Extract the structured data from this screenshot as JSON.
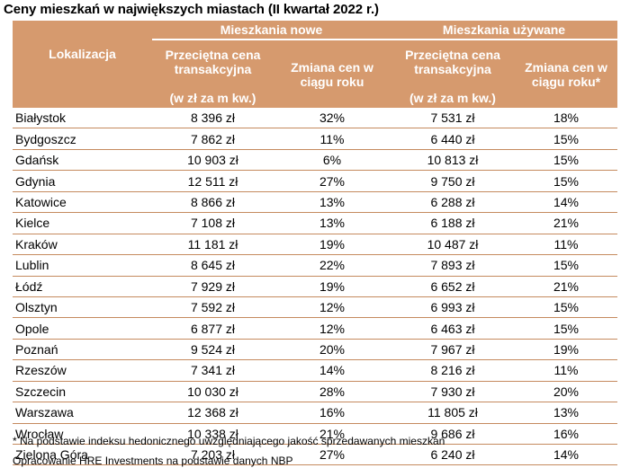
{
  "title": "Ceny mieszkań w największych miastach (II kwartał 2022 r.)",
  "header": {
    "location": "Lokalizacja",
    "group_new": "Mieszkania nowe",
    "group_used": "Mieszkania używane",
    "avg_price_line1": "Przeciętna cena",
    "avg_price_line2": "transakcyjna",
    "unit": "(w zł za m kw.)",
    "change_new_line1": "Zmiana cen w",
    "change_new_line2": "ciągu roku",
    "change_used_line1": "Zmiana cen w",
    "change_used_line2": "ciągu roku*"
  },
  "rows": [
    {
      "city": "Białystok",
      "new_price": "8 396 zł",
      "new_change": "32%",
      "used_price": "7 531 zł",
      "used_change": "18%"
    },
    {
      "city": "Bydgoszcz",
      "new_price": "7 862 zł",
      "new_change": "11%",
      "used_price": "6 440 zł",
      "used_change": "15%"
    },
    {
      "city": "Gdańsk",
      "new_price": "10 903 zł",
      "new_change": "6%",
      "used_price": "10 813 zł",
      "used_change": "15%"
    },
    {
      "city": "Gdynia",
      "new_price": "12 511 zł",
      "new_change": "27%",
      "used_price": "9 750 zł",
      "used_change": "15%"
    },
    {
      "city": "Katowice",
      "new_price": "8 866 zł",
      "new_change": "13%",
      "used_price": "6 288 zł",
      "used_change": "14%"
    },
    {
      "city": "Kielce",
      "new_price": "7 108 zł",
      "new_change": "13%",
      "used_price": "6 188 zł",
      "used_change": "21%"
    },
    {
      "city": "Kraków",
      "new_price": "11 181 zł",
      "new_change": "19%",
      "used_price": "10 487 zł",
      "used_change": "11%"
    },
    {
      "city": "Lublin",
      "new_price": "8 645 zł",
      "new_change": "22%",
      "used_price": "7 893 zł",
      "used_change": "15%"
    },
    {
      "city": "Łódź",
      "new_price": "7 929 zł",
      "new_change": "19%",
      "used_price": "6 652 zł",
      "used_change": "21%"
    },
    {
      "city": "Olsztyn",
      "new_price": "7 592 zł",
      "new_change": "12%",
      "used_price": "6 993 zł",
      "used_change": "15%"
    },
    {
      "city": "Opole",
      "new_price": "6 877 zł",
      "new_change": "12%",
      "used_price": "6 463 zł",
      "used_change": "15%"
    },
    {
      "city": "Poznań",
      "new_price": "9 524 zł",
      "new_change": "20%",
      "used_price": "7 967 zł",
      "used_change": "19%"
    },
    {
      "city": "Rzeszów",
      "new_price": "7 341 zł",
      "new_change": "14%",
      "used_price": "8 216 zł",
      "used_change": "11%"
    },
    {
      "city": "Szczecin",
      "new_price": "10 030 zł",
      "new_change": "28%",
      "used_price": "7 930 zł",
      "used_change": "20%"
    },
    {
      "city": "Warszawa",
      "new_price": "12 368 zł",
      "new_change": "16%",
      "used_price": "11 805 zł",
      "used_change": "13%"
    },
    {
      "city": "Wrocław",
      "new_price": "10 338 zł",
      "new_change": "21%",
      "used_price": "9 686 zł",
      "used_change": "16%"
    },
    {
      "city": "Zielona Góra",
      "new_price": "7 203 zł",
      "new_change": "27%",
      "used_price": "6 240 zł",
      "used_change": "14%"
    }
  ],
  "footnote": "* Na podstawie indeksu hedonicznego uwzględniającego jakość sprzedawanych mieszkań",
  "source": "Opracowanie HRE Investments na podstawie danych NBP",
  "colors": {
    "header_bg": "#d69a6e",
    "header_text": "#ffffff",
    "row_divider": "#c58a5e"
  }
}
